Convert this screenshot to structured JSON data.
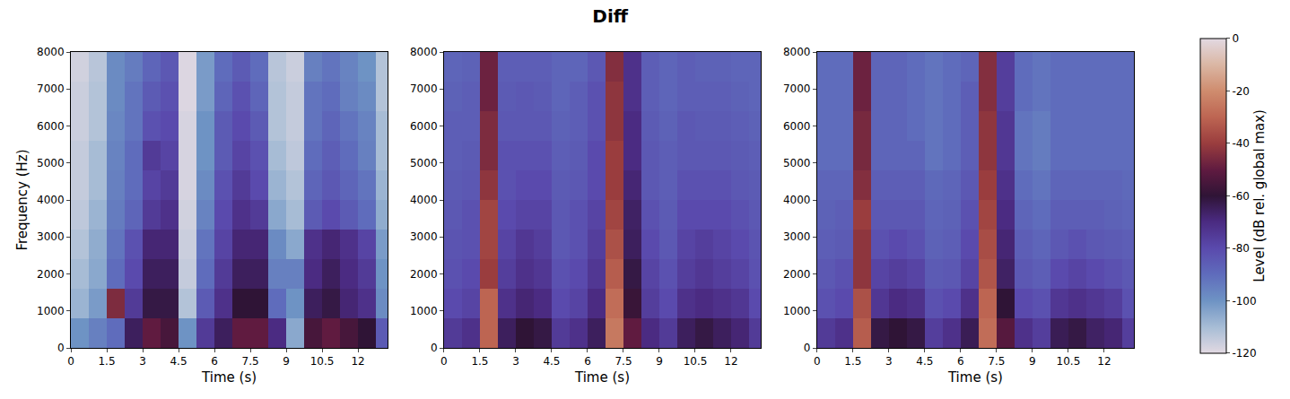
{
  "chart_data": {
    "type": "heatmap",
    "title": "Diff",
    "colorbar": {
      "label": "Level (dB rel. global max)",
      "range": [
        -120,
        0
      ],
      "ticks": [
        -120,
        -100,
        -80,
        -60,
        -40,
        -20,
        0
      ]
    },
    "panels": [
      {
        "xlabel": "Time (s)",
        "ylabel": "Frequency (Hz)",
        "xlim": [
          0,
          13.24
        ],
        "ylim": [
          0,
          8000
        ],
        "xticks": [
          0,
          1.5,
          3,
          4.5,
          6,
          7.5,
          9,
          10.5,
          12
        ],
        "yticks": [
          0,
          1000,
          2000,
          3000,
          4000,
          5000,
          6000,
          7000,
          8000
        ],
        "x": [
          0.375,
          1.125,
          1.875,
          2.625,
          3.375,
          4.125,
          4.875,
          5.625,
          6.375,
          7.125,
          7.875,
          8.625,
          9.375,
          10.125,
          10.875,
          11.625,
          12.375,
          13.125
        ],
        "y": [
          400,
          1200,
          2000,
          2800,
          3600,
          4400,
          5200,
          6000,
          6800,
          7600
        ],
        "z": [
          [
            -100,
            -95,
            -90,
            -65,
            -50,
            -55,
            -100,
            -75,
            -65,
            -50,
            -50,
            -70,
            -105,
            -55,
            -50,
            -55,
            -60,
            -85
          ],
          [
            -108,
            -102,
            -45,
            -75,
            -62,
            -62,
            -112,
            -85,
            -72,
            -60,
            -60,
            -90,
            -100,
            -65,
            -62,
            -68,
            -72,
            -98
          ],
          [
            -110,
            -105,
            -90,
            -80,
            -65,
            -65,
            -115,
            -90,
            -75,
            -65,
            -65,
            -95,
            -95,
            -70,
            -65,
            -70,
            -75,
            -100
          ],
          [
            -112,
            -106,
            -92,
            -82,
            -68,
            -68,
            -116,
            -92,
            -78,
            -68,
            -68,
            -98,
            -105,
            -72,
            -68,
            -72,
            -78,
            -102
          ],
          [
            -114,
            -108,
            -94,
            -88,
            -75,
            -72,
            -117,
            -96,
            -80,
            -72,
            -75,
            -105,
            -110,
            -85,
            -80,
            -85,
            -90,
            -106
          ],
          [
            -115,
            -110,
            -95,
            -90,
            -78,
            -75,
            -118,
            -98,
            -82,
            -75,
            -80,
            -108,
            -112,
            -88,
            -84,
            -88,
            -92,
            -108
          ],
          [
            -115,
            -110,
            -96,
            -90,
            -75,
            -78,
            -118,
            -100,
            -85,
            -78,
            -82,
            -110,
            -114,
            -90,
            -86,
            -90,
            -95,
            -110
          ],
          [
            -116,
            -112,
            -97,
            -92,
            -82,
            -80,
            -118,
            -100,
            -85,
            -80,
            -85,
            -112,
            -115,
            -92,
            -88,
            -92,
            -96,
            -110
          ],
          [
            -116,
            -112,
            -98,
            -92,
            -85,
            -82,
            -119,
            -102,
            -88,
            -82,
            -88,
            -112,
            -115,
            -92,
            -90,
            -95,
            -98,
            -112
          ],
          [
            -117,
            -113,
            -98,
            -94,
            -88,
            -84,
            -119,
            -102,
            -90,
            -85,
            -90,
            -113,
            -116,
            -95,
            -92,
            -96,
            -100,
            -112
          ]
        ]
      },
      {
        "xlabel": "Time (s)",
        "xlim": [
          0,
          13.24
        ],
        "ylim": [
          0,
          8000
        ],
        "xticks": [
          0,
          1.5,
          3,
          4.5,
          6,
          7.5,
          9,
          10.5,
          12
        ],
        "yticks": [
          0,
          1000,
          2000,
          3000,
          4000,
          5000,
          6000,
          7000,
          8000
        ],
        "x": [
          0.375,
          1.125,
          1.875,
          2.625,
          3.375,
          4.125,
          4.875,
          5.625,
          6.375,
          7.125,
          7.875,
          8.625,
          9.375,
          10.125,
          10.875,
          11.625,
          12.375,
          13.125
        ],
        "y": [
          400,
          1200,
          2000,
          2800,
          3600,
          4400,
          5200,
          6000,
          6800,
          7600
        ],
        "z": [
          [
            -75,
            -72,
            -30,
            -65,
            -60,
            -62,
            -75,
            -72,
            -65,
            -25,
            -50,
            -70,
            -75,
            -65,
            -62,
            -65,
            -68,
            -75
          ],
          [
            -80,
            -78,
            -30,
            -72,
            -68,
            -70,
            -80,
            -78,
            -70,
            -28,
            -58,
            -76,
            -80,
            -72,
            -70,
            -72,
            -74,
            -80
          ],
          [
            -82,
            -80,
            -40,
            -76,
            -72,
            -74,
            -82,
            -80,
            -74,
            -32,
            -62,
            -78,
            -82,
            -76,
            -74,
            -76,
            -78,
            -82
          ],
          [
            -83,
            -82,
            -38,
            -78,
            -74,
            -76,
            -84,
            -82,
            -76,
            -35,
            -65,
            -80,
            -84,
            -78,
            -76,
            -78,
            -80,
            -83
          ],
          [
            -84,
            -82,
            -38,
            -80,
            -78,
            -78,
            -84,
            -82,
            -78,
            -38,
            -66,
            -82,
            -85,
            -80,
            -80,
            -80,
            -82,
            -84
          ],
          [
            -85,
            -84,
            -42,
            -82,
            -80,
            -80,
            -85,
            -84,
            -80,
            -40,
            -68,
            -84,
            -86,
            -82,
            -82,
            -82,
            -84,
            -85
          ],
          [
            -86,
            -85,
            -45,
            -82,
            -82,
            -82,
            -86,
            -85,
            -80,
            -40,
            -70,
            -84,
            -86,
            -84,
            -84,
            -84,
            -85,
            -86
          ],
          [
            -86,
            -86,
            -45,
            -84,
            -84,
            -84,
            -87,
            -86,
            -82,
            -42,
            -70,
            -85,
            -87,
            -84,
            -85,
            -85,
            -86,
            -87
          ],
          [
            -87,
            -86,
            -48,
            -85,
            -84,
            -85,
            -88,
            -86,
            -82,
            -42,
            -72,
            -86,
            -88,
            -86,
            -86,
            -86,
            -87,
            -88
          ],
          [
            -88,
            -87,
            -48,
            -86,
            -86,
            -86,
            -88,
            -88,
            -84,
            -44,
            -72,
            -86,
            -88,
            -86,
            -87,
            -87,
            -88,
            -88
          ]
        ]
      },
      {
        "xlabel": "Time (s)",
        "xlim": [
          0,
          13.24
        ],
        "ylim": [
          0,
          8000
        ],
        "xticks": [
          0,
          1.5,
          3,
          4.5,
          6,
          7.5,
          9,
          10.5,
          12
        ],
        "yticks": [
          0,
          1000,
          2000,
          3000,
          4000,
          5000,
          6000,
          7000,
          8000
        ],
        "x": [
          0.375,
          1.125,
          1.875,
          2.625,
          3.375,
          4.125,
          4.875,
          5.625,
          6.375,
          7.125,
          7.875,
          8.625,
          9.375,
          10.125,
          10.875,
          11.625,
          12.375,
          13.125
        ],
        "y": [
          400,
          1200,
          2000,
          2800,
          3600,
          4400,
          5200,
          6000,
          6800,
          7600
        ],
        "z": [
          [
            -75,
            -72,
            -32,
            -62,
            -60,
            -62,
            -76,
            -72,
            -64,
            -28,
            -52,
            -72,
            -76,
            -64,
            -62,
            -66,
            -68,
            -76
          ],
          [
            -82,
            -80,
            -35,
            -74,
            -70,
            -72,
            -82,
            -80,
            -72,
            -30,
            -60,
            -80,
            -82,
            -74,
            -72,
            -74,
            -76,
            -82
          ],
          [
            -84,
            -82,
            -42,
            -78,
            -76,
            -78,
            -85,
            -84,
            -78,
            -34,
            -66,
            -84,
            -86,
            -80,
            -78,
            -80,
            -82,
            -84
          ],
          [
            -86,
            -85,
            -42,
            -82,
            -80,
            -82,
            -87,
            -86,
            -80,
            -36,
            -68,
            -86,
            -88,
            -84,
            -82,
            -84,
            -85,
            -86
          ],
          [
            -87,
            -86,
            -40,
            -84,
            -84,
            -84,
            -88,
            -87,
            -82,
            -38,
            -70,
            -88,
            -90,
            -86,
            -86,
            -86,
            -87,
            -88
          ],
          [
            -88,
            -88,
            -44,
            -86,
            -86,
            -86,
            -89,
            -88,
            -84,
            -40,
            -72,
            -90,
            -92,
            -88,
            -88,
            -88,
            -88,
            -89
          ],
          [
            -90,
            -90,
            -46,
            -88,
            -88,
            -88,
            -92,
            -90,
            -86,
            -42,
            -74,
            -92,
            -94,
            -90,
            -90,
            -90,
            -90,
            -90
          ],
          [
            -90,
            -90,
            -46,
            -88,
            -88,
            -90,
            -92,
            -90,
            -86,
            -42,
            -74,
            -92,
            -94,
            -90,
            -90,
            -90,
            -90,
            -90
          ],
          [
            -90,
            -90,
            -48,
            -88,
            -88,
            -90,
            -92,
            -90,
            -86,
            -44,
            -76,
            -90,
            -92,
            -90,
            -90,
            -90,
            -90,
            -90
          ],
          [
            -90,
            -90,
            -48,
            -88,
            -88,
            -90,
            -92,
            -90,
            -88,
            -44,
            -76,
            -90,
            -92,
            -90,
            -90,
            -90,
            -90,
            -90
          ]
        ]
      }
    ]
  }
}
